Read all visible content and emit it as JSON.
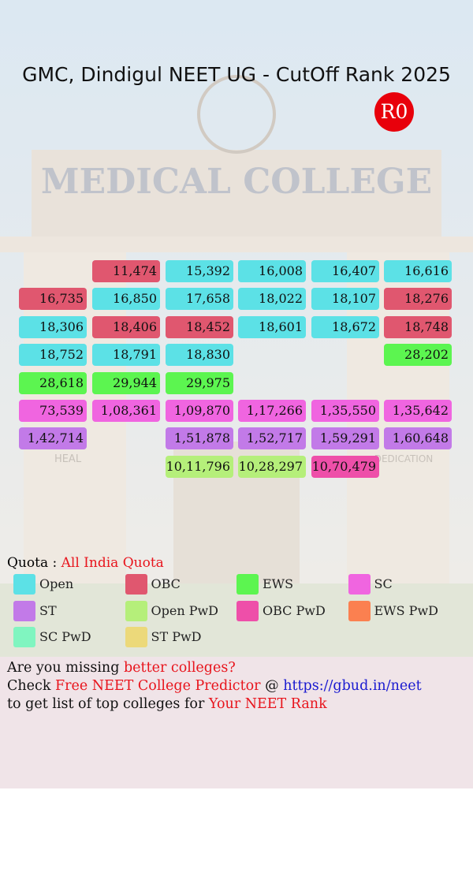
{
  "header": {
    "title": "GMC, Dindigul NEET UG - CutOff Rank 2025",
    "round": "R0"
  },
  "background": {
    "sign": "MEDICAL COLLEGE",
    "left_panel": "HEAL",
    "right_panel": "DEDICATION"
  },
  "grid": {
    "rows": [
      [
        null,
        {
          "text": "11,474",
          "color": "#e0576f"
        },
        {
          "text": "15,392",
          "color": "#5ce1e6"
        },
        {
          "text": "16,008",
          "color": "#5ce1e6"
        },
        {
          "text": "16,407",
          "color": "#5ce1e6"
        },
        {
          "text": "16,616",
          "color": "#5ce1e6"
        }
      ],
      [
        {
          "text": "16,735",
          "color": "#e0576f"
        },
        {
          "text": "16,850",
          "color": "#5ce1e6"
        },
        {
          "text": "17,658",
          "color": "#5ce1e6"
        },
        {
          "text": "18,022",
          "color": "#5ce1e6"
        },
        {
          "text": "18,107",
          "color": "#5ce1e6"
        },
        {
          "text": "18,276",
          "color": "#e0576f"
        }
      ],
      [
        {
          "text": "18,306",
          "color": "#5ce1e6"
        },
        {
          "text": "18,406",
          "color": "#e0576f"
        },
        {
          "text": "18,452",
          "color": "#e0576f"
        },
        {
          "text": "18,601",
          "color": "#5ce1e6"
        },
        {
          "text": "18,672",
          "color": "#5ce1e6"
        },
        {
          "text": "18,748",
          "color": "#e0576f"
        }
      ],
      [
        {
          "text": "18,752",
          "color": "#5ce1e6"
        },
        {
          "text": "18,791",
          "color": "#5ce1e6"
        },
        {
          "text": "18,830",
          "color": "#5ce1e6"
        },
        null,
        null,
        {
          "text": "28,202",
          "color": "#5cf550"
        }
      ],
      [
        {
          "text": "28,618",
          "color": "#5cf550"
        },
        {
          "text": "29,944",
          "color": "#5cf550"
        },
        {
          "text": "29,975",
          "color": "#5cf550"
        },
        null,
        null,
        null
      ],
      [
        {
          "text": "73,539",
          "color": "#f065e0"
        },
        {
          "text": "1,08,361",
          "color": "#f065e0"
        },
        {
          "text": "1,09,870",
          "color": "#f065e0"
        },
        {
          "text": "1,17,266",
          "color": "#f065e0"
        },
        {
          "text": "1,35,550",
          "color": "#f065e0"
        },
        {
          "text": "1,35,642",
          "color": "#f065e0"
        }
      ],
      [
        {
          "text": "1,42,714",
          "color": "#c27ae8"
        },
        null,
        {
          "text": "1,51,878",
          "color": "#c27ae8"
        },
        {
          "text": "1,52,717",
          "color": "#c27ae8"
        },
        {
          "text": "1,59,291",
          "color": "#c27ae8"
        },
        {
          "text": "1,60,648",
          "color": "#c27ae8"
        }
      ],
      [
        null,
        null,
        {
          "text": "10,11,796",
          "color": "#b5ef7a"
        },
        {
          "text": "10,28,297",
          "color": "#b5ef7a"
        },
        {
          "text": "10,70,479",
          "color": "#ee4fa9"
        },
        null
      ]
    ]
  },
  "legend": {
    "label": "Quota :",
    "quota": "All India Quota",
    "items": [
      {
        "name": "Open",
        "color": "#5ce1e6"
      },
      {
        "name": "OBC",
        "color": "#e0576f"
      },
      {
        "name": "EWS",
        "color": "#5cf550"
      },
      {
        "name": "SC",
        "color": "#f065e0"
      },
      {
        "name": "ST",
        "color": "#c27ae8"
      },
      {
        "name": "Open PwD",
        "color": "#b5ef7a"
      },
      {
        "name": "OBC PwD",
        "color": "#ee4fa9"
      },
      {
        "name": "EWS PwD",
        "color": "#fb8050"
      },
      {
        "name": "SC PwD",
        "color": "#80f5c0"
      },
      {
        "name": "ST PwD",
        "color": "#ecd97a"
      }
    ]
  },
  "footer": {
    "lines": [
      [
        {
          "text": "Are you missing"
        },
        {
          "text": "better colleges?",
          "color": "#e8141c"
        }
      ],
      [
        {
          "text": "Check"
        },
        {
          "text": "Free NEET College Predictor",
          "color": "#e8141c"
        },
        {
          "text": "@"
        },
        {
          "text": "https://gbud.in/neet",
          "color": "#1a1ad0"
        }
      ],
      [
        {
          "text": "to get list of top colleges for"
        },
        {
          "text": "Your NEET Rank",
          "color": "#e8141c"
        }
      ]
    ]
  }
}
